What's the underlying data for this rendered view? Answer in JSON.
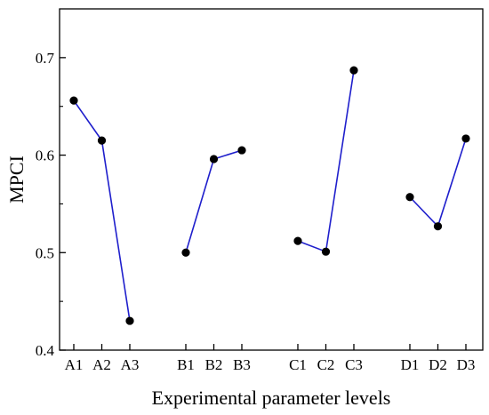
{
  "chart_data": {
    "type": "line",
    "title": "",
    "xlabel": "Experimental parameter levels",
    "ylabel": "MPCI",
    "ylim": [
      0.4,
      0.75
    ],
    "yticks": [
      "0.4",
      "0.5",
      "0.6",
      "0.7"
    ],
    "grid": false,
    "legend": "none",
    "line_color": "#1f1fcc",
    "marker_color": "#000000",
    "series": [
      {
        "categories": [
          "A1",
          "A2",
          "A3"
        ],
        "values": [
          0.656,
          0.615,
          0.43
        ]
      },
      {
        "categories": [
          "B1",
          "B2",
          "B3"
        ],
        "values": [
          0.5,
          0.596,
          0.605
        ]
      },
      {
        "categories": [
          "C1",
          "C2",
          "C3"
        ],
        "values": [
          0.512,
          0.501,
          0.687
        ]
      },
      {
        "categories": [
          "D1",
          "D2",
          "D3"
        ],
        "values": [
          0.557,
          0.527,
          0.617
        ]
      }
    ]
  }
}
